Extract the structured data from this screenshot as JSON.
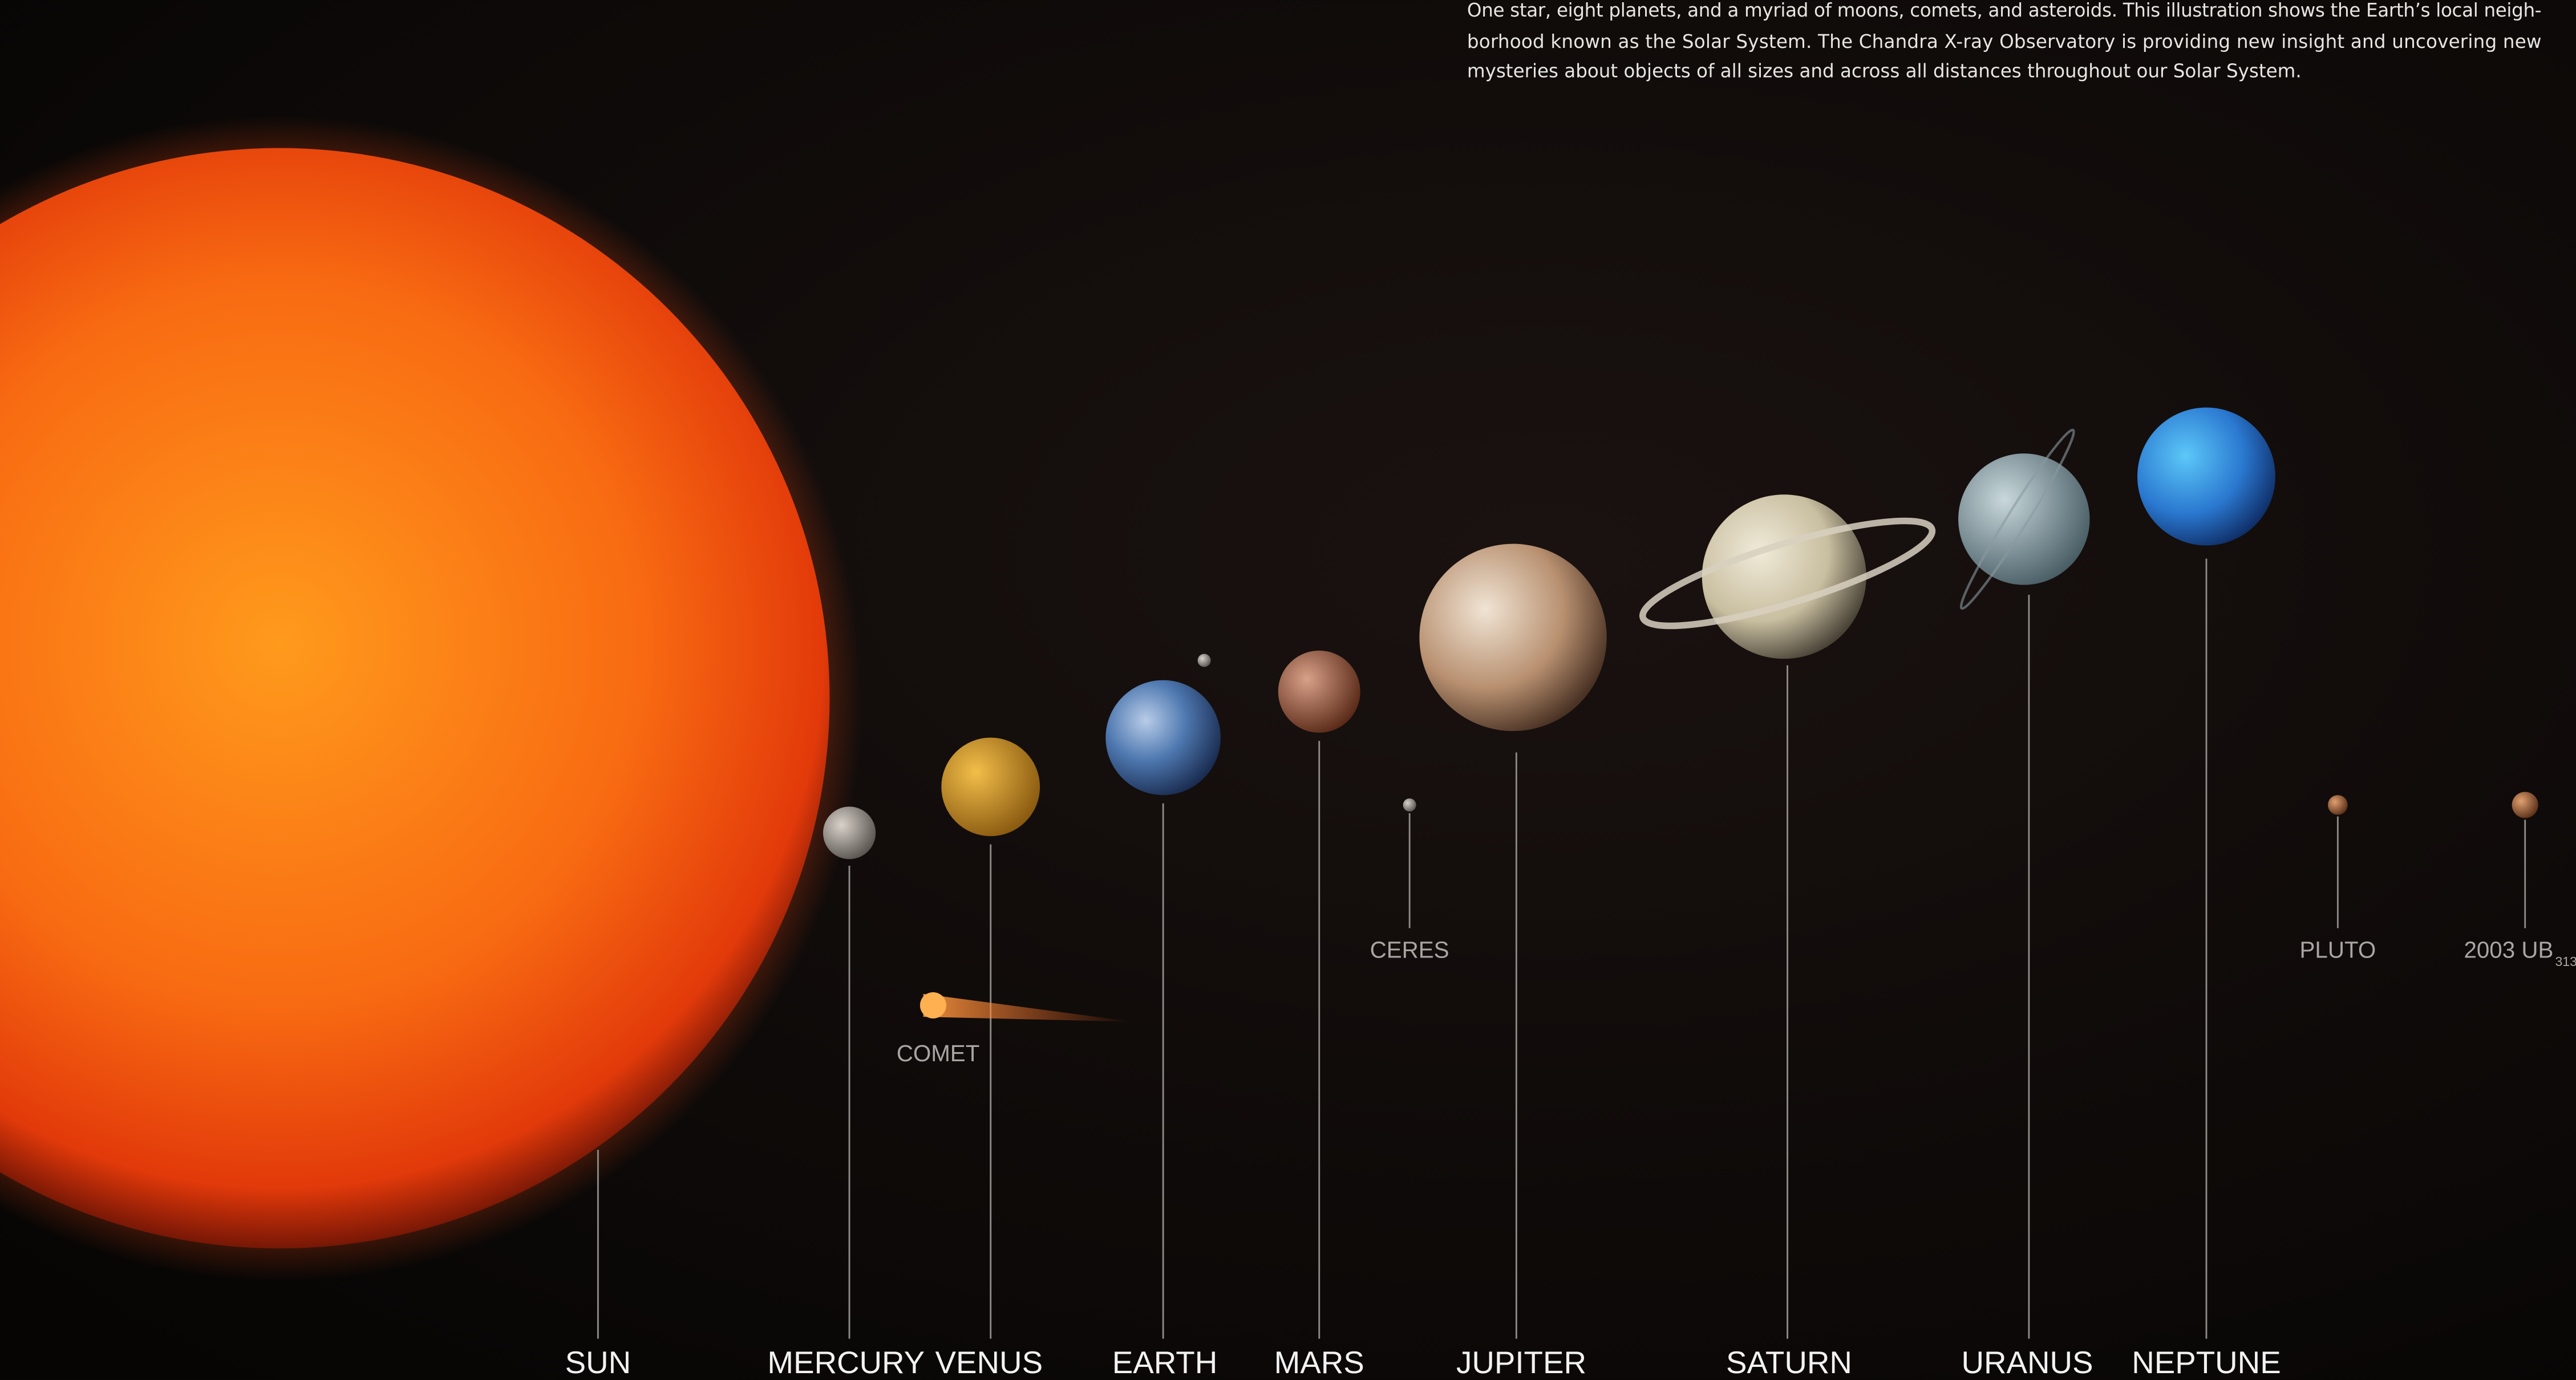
{
  "description_lines": [
    "One star, eight planets, and a myriad of moons, comets, and asteroids. This illustration shows the Earth’s local neigh-",
    "borhood known as the Solar System. The Chandra X-ray Observatory is providing new insight and uncovering new",
    "mysteries about objects of all sizes and across all distances throughout our Solar System."
  ],
  "labels": {
    "sun": "SUN",
    "mercury": "MERCURY",
    "venus": "VENUS",
    "earth": "EARTH",
    "mars": "MARS",
    "jupiter": "JUPITER",
    "saturn": "SATURN",
    "uranus": "URANUS",
    "neptune": "NEPTUNE",
    "comet": "COMET",
    "ceres": "CERES",
    "pluto": "PLUTO",
    "ub313": "2003 UB",
    "ub313_subscript": "313"
  }
}
